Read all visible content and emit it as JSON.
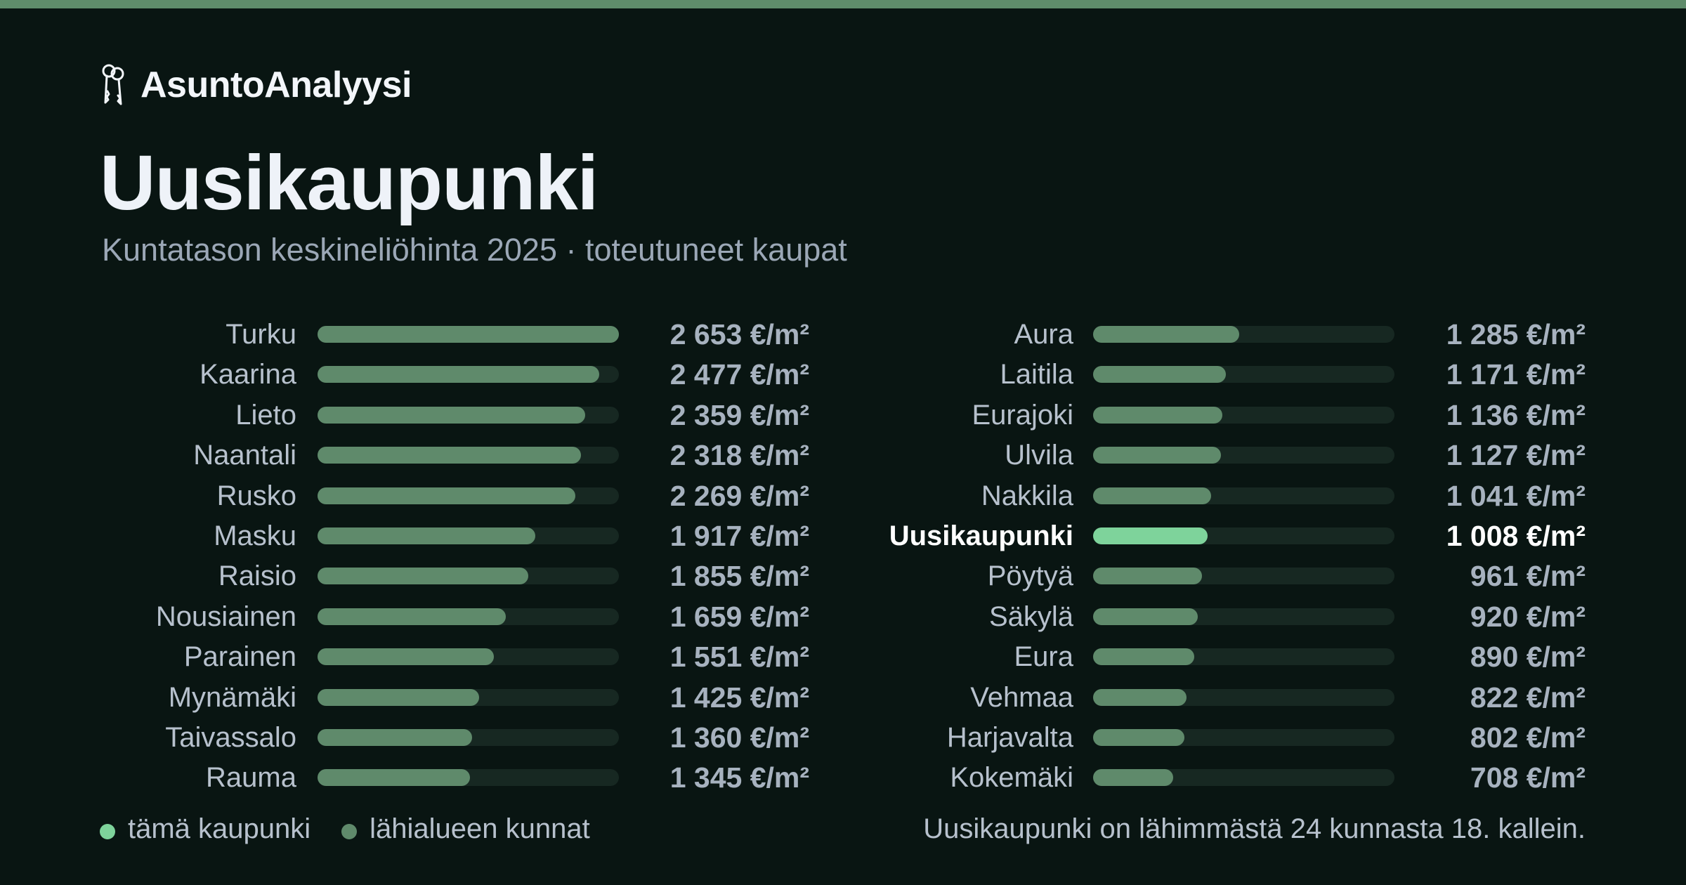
{
  "brand": {
    "name": "AsuntoAnalyysi",
    "icon": "keys-icon"
  },
  "title": "Uusikaupunki",
  "subtitle": "Kuntatason keskineliöhinta 2025 · toteutuneet kaupat",
  "colors": {
    "background": "#091512",
    "accent_bar": "#5f8c6b",
    "highlight": "#7ed39b",
    "nearby": "#5f8a6b",
    "track": "#172822"
  },
  "legend": {
    "this_city": "tämä kaupunki",
    "nearby": "lähialueen kunnat"
  },
  "footnote": "Uusikaupunki on lähimmästä 24 kunnasta 18. kallein.",
  "chart_data": {
    "type": "bar",
    "orientation": "horizontal",
    "unit": "€/m²",
    "max": 2653,
    "highlight": "Uusikaupunki",
    "columns": [
      [
        {
          "name": "Turku",
          "value": 2653,
          "label": "2 653 €/m²"
        },
        {
          "name": "Kaarina",
          "value": 2477,
          "label": "2 477 €/m²"
        },
        {
          "name": "Lieto",
          "value": 2359,
          "label": "2 359 €/m²"
        },
        {
          "name": "Naantali",
          "value": 2318,
          "label": "2 318 €/m²"
        },
        {
          "name": "Rusko",
          "value": 2269,
          "label": "2 269 €/m²"
        },
        {
          "name": "Masku",
          "value": 1917,
          "label": "1 917 €/m²"
        },
        {
          "name": "Raisio",
          "value": 1855,
          "label": "1 855 €/m²"
        },
        {
          "name": "Nousiainen",
          "value": 1659,
          "label": "1 659 €/m²"
        },
        {
          "name": "Parainen",
          "value": 1551,
          "label": "1 551 €/m²"
        },
        {
          "name": "Mynämäki",
          "value": 1425,
          "label": "1 425 €/m²"
        },
        {
          "name": "Taivassalo",
          "value": 1360,
          "label": "1 360 €/m²"
        },
        {
          "name": "Rauma",
          "value": 1345,
          "label": "1 345 €/m²"
        }
      ],
      [
        {
          "name": "Aura",
          "value": 1285,
          "label": "1 285 €/m²"
        },
        {
          "name": "Laitila",
          "value": 1171,
          "label": "1 171 €/m²"
        },
        {
          "name": "Eurajoki",
          "value": 1136,
          "label": "1 136 €/m²"
        },
        {
          "name": "Ulvila",
          "value": 1127,
          "label": "1 127 €/m²"
        },
        {
          "name": "Nakkila",
          "value": 1041,
          "label": "1 041 €/m²"
        },
        {
          "name": "Uusikaupunki",
          "value": 1008,
          "label": "1 008 €/m²"
        },
        {
          "name": "Pöytyä",
          "value": 961,
          "label": "961 €/m²"
        },
        {
          "name": "Säkylä",
          "value": 920,
          "label": "920 €/m²"
        },
        {
          "name": "Eura",
          "value": 890,
          "label": "890 €/m²"
        },
        {
          "name": "Vehmaa",
          "value": 822,
          "label": "822 €/m²"
        },
        {
          "name": "Harjavalta",
          "value": 802,
          "label": "802 €/m²"
        },
        {
          "name": "Kokemäki",
          "value": 708,
          "label": "708 €/m²"
        }
      ]
    ]
  }
}
